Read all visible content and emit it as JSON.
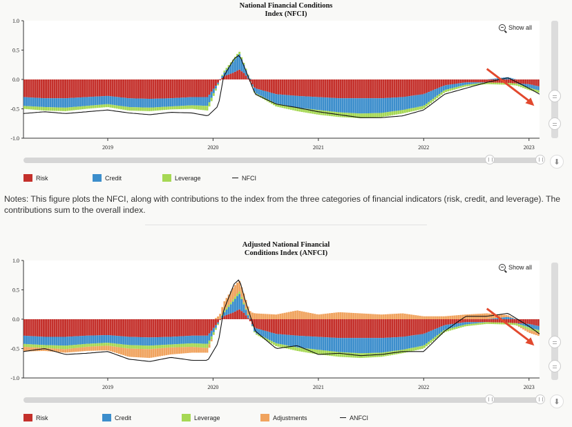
{
  "colors": {
    "risk": "#c4302b",
    "credit": "#3c8ecc",
    "leverage": "#a6d854",
    "adjustments": "#f0a35e",
    "line": "#111111",
    "arrow": "#e2492e"
  },
  "chart1": {
    "title_line1": "National Financial Conditions",
    "title_line2": "Index (NFCI)",
    "show_all": "Show all",
    "legend": [
      "Risk",
      "Credit",
      "Leverage",
      "NFCI"
    ]
  },
  "chart2": {
    "title_line1": "Adjusted National Financial",
    "title_line2": "Conditions Index (ANFCI)",
    "show_all": "Show all",
    "legend": [
      "Risk",
      "Credit",
      "Leverage",
      "Adjustments",
      "ANFCI"
    ]
  },
  "notes": "Notes: This figure plots the NFCI, along with contributions to the index from the three categories of financial indicators (risk, credit, and leverage). The contributions sum to the overall index.",
  "chart_data": [
    {
      "type": "bar",
      "stacked": true,
      "title": "National Financial Conditions Index (NFCI)",
      "ylim": [
        -1.0,
        1.0
      ],
      "yticks": [
        "1.0",
        "0.5",
        "0.0",
        "-0.5",
        "-1.0"
      ],
      "ytick_values": [
        1.0,
        0.5,
        0.0,
        -0.5,
        -1.0
      ],
      "xlim": [
        2018.2,
        2023.1
      ],
      "xticks": [
        "2019",
        "2020",
        "2021",
        "2022",
        "2023"
      ],
      "xtick_values": [
        2019,
        2020,
        2021,
        2022,
        2023
      ],
      "legend_position": "bottom-left",
      "x": [
        2018.2,
        2018.4,
        2018.6,
        2018.8,
        2019.0,
        2019.2,
        2019.4,
        2019.6,
        2019.8,
        2019.95,
        2020.05,
        2020.1,
        2020.2,
        2020.25,
        2020.3,
        2020.4,
        2020.6,
        2020.8,
        2021.0,
        2021.2,
        2021.4,
        2021.6,
        2021.8,
        2022.0,
        2022.2,
        2022.4,
        2022.6,
        2022.8,
        2023.0,
        2023.1
      ],
      "series": [
        {
          "name": "Risk",
          "values": [
            -0.3,
            -0.32,
            -0.32,
            -0.3,
            -0.28,
            -0.32,
            -0.33,
            -0.32,
            -0.3,
            -0.3,
            -0.05,
            0.05,
            0.12,
            0.17,
            0.1,
            -0.15,
            -0.25,
            -0.28,
            -0.3,
            -0.32,
            -0.32,
            -0.32,
            -0.3,
            -0.25,
            -0.1,
            -0.05,
            -0.05,
            -0.06,
            -0.08,
            -0.12
          ]
        },
        {
          "name": "Credit",
          "values": [
            -0.15,
            -0.15,
            -0.16,
            -0.15,
            -0.14,
            -0.15,
            -0.15,
            -0.14,
            -0.14,
            -0.15,
            -0.02,
            0.05,
            0.2,
            0.27,
            0.12,
            -0.08,
            -0.16,
            -0.2,
            -0.22,
            -0.24,
            -0.26,
            -0.25,
            -0.22,
            -0.2,
            -0.08,
            -0.04,
            0.0,
            0.04,
            -0.06,
            -0.07
          ]
        },
        {
          "name": "Leverage",
          "values": [
            -0.05,
            -0.06,
            -0.06,
            -0.05,
            -0.05,
            -0.06,
            -0.06,
            -0.05,
            -0.06,
            -0.08,
            -0.02,
            0.03,
            0.04,
            0.04,
            0.03,
            -0.02,
            -0.05,
            -0.06,
            -0.08,
            -0.08,
            -0.08,
            -0.07,
            -0.06,
            -0.05,
            -0.04,
            -0.03,
            -0.03,
            -0.03,
            -0.04,
            -0.04
          ]
        },
        {
          "name": "NFCI",
          "type": "line",
          "values": [
            -0.58,
            -0.55,
            -0.58,
            -0.55,
            -0.52,
            -0.57,
            -0.6,
            -0.56,
            -0.57,
            -0.62,
            -0.45,
            0.05,
            0.35,
            0.42,
            0.2,
            -0.25,
            -0.42,
            -0.48,
            -0.55,
            -0.6,
            -0.65,
            -0.65,
            -0.62,
            -0.52,
            -0.25,
            -0.15,
            -0.05,
            0.03,
            -0.15,
            -0.25
          ]
        }
      ]
    },
    {
      "type": "bar",
      "stacked": true,
      "title": "Adjusted National Financial Conditions Index (ANFCI)",
      "ylim": [
        -1.0,
        1.0
      ],
      "yticks": [
        "1.0",
        "0.5",
        "0.0",
        "-0.5",
        "-1.0"
      ],
      "ytick_values": [
        1.0,
        0.5,
        0.0,
        -0.5,
        -1.0
      ],
      "xlim": [
        2018.2,
        2023.1
      ],
      "xticks": [
        "2019",
        "2020",
        "2021",
        "2022",
        "2023"
      ],
      "xtick_values": [
        2019,
        2020,
        2021,
        2022,
        2023
      ],
      "legend_position": "bottom-left",
      "x": [
        2018.2,
        2018.4,
        2018.6,
        2018.8,
        2019.0,
        2019.2,
        2019.4,
        2019.6,
        2019.8,
        2019.95,
        2020.05,
        2020.1,
        2020.2,
        2020.25,
        2020.3,
        2020.4,
        2020.6,
        2020.8,
        2021.0,
        2021.2,
        2021.4,
        2021.6,
        2021.8,
        2022.0,
        2022.2,
        2022.4,
        2022.6,
        2022.8,
        2023.0,
        2023.1
      ],
      "series": [
        {
          "name": "Risk",
          "values": [
            -0.28,
            -0.3,
            -0.3,
            -0.28,
            -0.27,
            -0.3,
            -0.31,
            -0.3,
            -0.28,
            -0.28,
            -0.05,
            0.05,
            0.12,
            0.17,
            0.1,
            -0.15,
            -0.25,
            -0.28,
            -0.3,
            -0.32,
            -0.32,
            -0.32,
            -0.3,
            -0.25,
            -0.1,
            -0.05,
            -0.05,
            -0.06,
            -0.08,
            -0.12
          ]
        },
        {
          "name": "Credit",
          "values": [
            -0.14,
            -0.14,
            -0.15,
            -0.14,
            -0.13,
            -0.14,
            -0.14,
            -0.13,
            -0.13,
            -0.14,
            -0.02,
            0.05,
            0.2,
            0.27,
            0.12,
            -0.08,
            -0.16,
            -0.2,
            -0.22,
            -0.24,
            -0.26,
            -0.25,
            -0.22,
            -0.2,
            -0.08,
            -0.04,
            0.0,
            0.04,
            -0.06,
            -0.07
          ]
        },
        {
          "name": "Leverage",
          "values": [
            -0.05,
            -0.05,
            -0.06,
            -0.05,
            -0.05,
            -0.06,
            -0.06,
            -0.05,
            -0.06,
            -0.07,
            -0.02,
            0.03,
            0.04,
            0.04,
            0.03,
            -0.02,
            -0.05,
            -0.06,
            -0.08,
            -0.08,
            -0.08,
            -0.07,
            -0.06,
            -0.05,
            -0.04,
            -0.03,
            -0.03,
            -0.03,
            -0.04,
            -0.04
          ]
        },
        {
          "name": "Adjustments",
          "values": [
            -0.08,
            -0.05,
            -0.06,
            -0.07,
            -0.08,
            -0.14,
            -0.15,
            -0.12,
            -0.1,
            -0.08,
            0.05,
            0.15,
            0.2,
            0.18,
            0.15,
            0.1,
            0.08,
            0.15,
            0.08,
            0.12,
            0.1,
            0.08,
            0.1,
            0.05,
            0.05,
            0.08,
            0.1,
            0.03,
            -0.05,
            -0.06
          ]
        },
        {
          "name": "ANFCI",
          "type": "line",
          "values": [
            -0.55,
            -0.5,
            -0.6,
            -0.58,
            -0.55,
            -0.68,
            -0.72,
            -0.65,
            -0.7,
            -0.7,
            -0.4,
            0.15,
            0.6,
            0.68,
            0.35,
            -0.2,
            -0.5,
            -0.45,
            -0.6,
            -0.58,
            -0.62,
            -0.6,
            -0.55,
            -0.55,
            -0.2,
            0.05,
            0.05,
            0.1,
            -0.12,
            -0.25
          ]
        }
      ]
    }
  ]
}
